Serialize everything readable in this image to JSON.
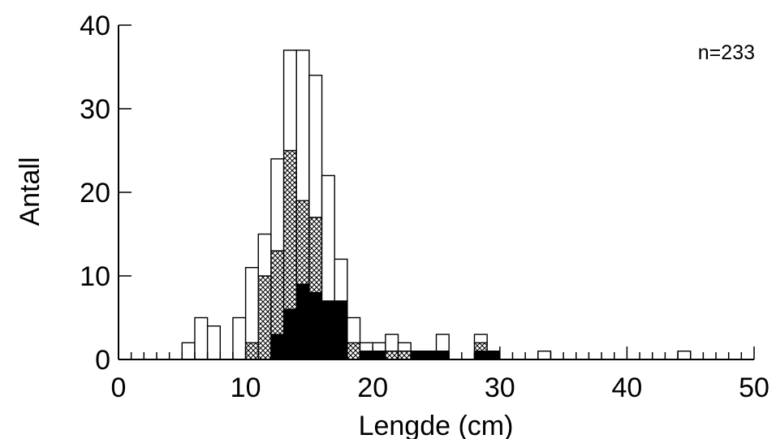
{
  "chart_data": {
    "type": "bar",
    "stacked": true,
    "bin_width": 1,
    "xlabel": "Lengde (cm)",
    "ylabel": "Antall",
    "annotation": "n=233",
    "xlim": [
      0,
      50
    ],
    "ylim": [
      0,
      40
    ],
    "xticks": [
      0,
      10,
      20,
      30,
      40,
      50
    ],
    "yticks": [
      0,
      10,
      20,
      30,
      40
    ],
    "grid": false,
    "legend": "none",
    "x": [
      5,
      6,
      7,
      9,
      10,
      11,
      12,
      13,
      14,
      15,
      16,
      17,
      18,
      19,
      20,
      21,
      22,
      23,
      24,
      25,
      28,
      29,
      33,
      44
    ],
    "series": [
      {
        "fill": "solid",
        "color": "#000000",
        "values": [
          0,
          0,
          0,
          0,
          0,
          0,
          3,
          6,
          9,
          8,
          7,
          7,
          0,
          1,
          1,
          0,
          0,
          1,
          1,
          1,
          1,
          1,
          0,
          0
        ]
      },
      {
        "fill": "crosshatch",
        "color": "#000000",
        "values": [
          0,
          0,
          0,
          0,
          2,
          10,
          10,
          19,
          10,
          9,
          0,
          0,
          2,
          0,
          0,
          1,
          1,
          0,
          0,
          0,
          1,
          0,
          0,
          0
        ]
      },
      {
        "fill": "open",
        "color": "#ffffff",
        "values": [
          2,
          5,
          4,
          5,
          9,
          5,
          11,
          12,
          18,
          17,
          15,
          5,
          3,
          1,
          1,
          2,
          1,
          0,
          0,
          2,
          1,
          0,
          1,
          1
        ]
      }
    ]
  }
}
